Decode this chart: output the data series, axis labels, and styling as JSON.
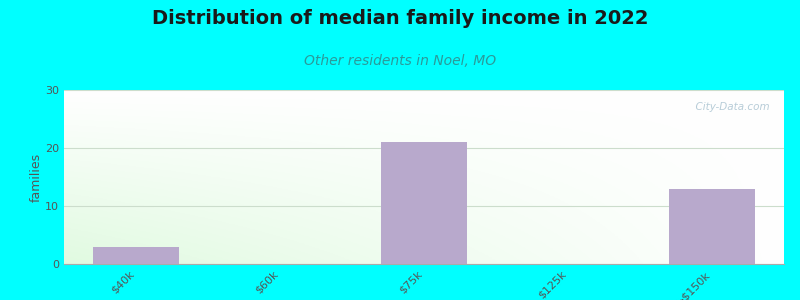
{
  "categories": [
    "$40k",
    "$60k",
    "$75k",
    "$125k",
    ">$150k"
  ],
  "values": [
    3,
    0,
    21,
    0,
    13
  ],
  "bar_color": "#b8a9cc",
  "bar_width": 0.6,
  "title": "Distribution of median family income in 2022",
  "subtitle": "Other residents in Noel, MO",
  "ylabel": "families",
  "ylim": [
    0,
    30
  ],
  "yticks": [
    0,
    10,
    20,
    30
  ],
  "background_color": "#00ffff",
  "title_fontsize": 14,
  "subtitle_fontsize": 10,
  "subtitle_color": "#2a9a9a",
  "ylabel_fontsize": 9,
  "tick_fontsize": 8,
  "watermark": "  City-Data.com",
  "grid_color": "#ccddcc",
  "plot_left_color": "#d8f0d0",
  "plot_right_color": "#f5faf5"
}
